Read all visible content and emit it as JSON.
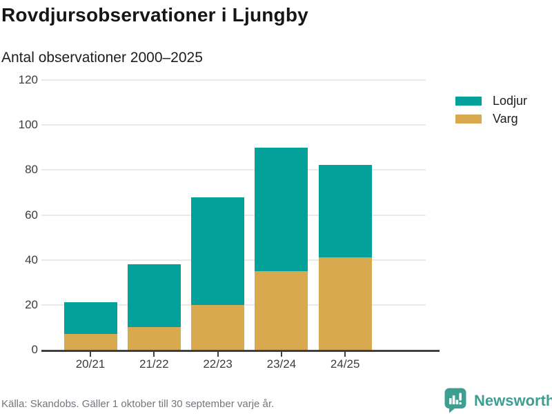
{
  "header": {
    "title": "Rovdjursobservationer i Ljungby",
    "subtitle": "Antal observationer 2000–2025"
  },
  "chart_data": {
    "type": "bar",
    "stacked": true,
    "title": "Rovdjursobservationer i Ljungby",
    "subtitle": "Antal observationer 2000–2025",
    "categories": [
      "20/21",
      "21/22",
      "22/23",
      "23/24",
      "24/25"
    ],
    "series": [
      {
        "name": "Varg",
        "color": "#d8a94f",
        "values": [
          7,
          10,
          20,
          35,
          41
        ],
        "stack_position": "bottom"
      },
      {
        "name": "Lodjur",
        "color": "#03a199",
        "values": [
          14,
          28,
          48,
          55,
          41
        ],
        "stack_position": "top"
      }
    ],
    "stack_totals": [
      21,
      38,
      68,
      90,
      82
    ],
    "xlabel": "",
    "ylabel": "",
    "ylim": [
      0,
      120
    ],
    "yticks": [
      0,
      20,
      40,
      60,
      80,
      100,
      120
    ],
    "grid": true,
    "legend_position": "top-right",
    "legend_order": [
      "Lodjur",
      "Varg"
    ]
  },
  "legend": {
    "items": [
      {
        "label": "Lodjur",
        "color": "#03a199"
      },
      {
        "label": "Varg",
        "color": "#d8a94f"
      }
    ]
  },
  "footer": {
    "source": "Källa: Skandobs. Gäller 1 oktober till 30 september varje år.",
    "brand": "Newsworthy"
  },
  "colors": {
    "lodjur": "#03a199",
    "varg": "#d8a94f",
    "brand_teal": "#3f9e92",
    "grid": "#e9e9e9",
    "axis": "#3f3f3f",
    "title_text": "#161616",
    "axis_text": "#3c3c3c",
    "muted_text": "#75757d"
  }
}
